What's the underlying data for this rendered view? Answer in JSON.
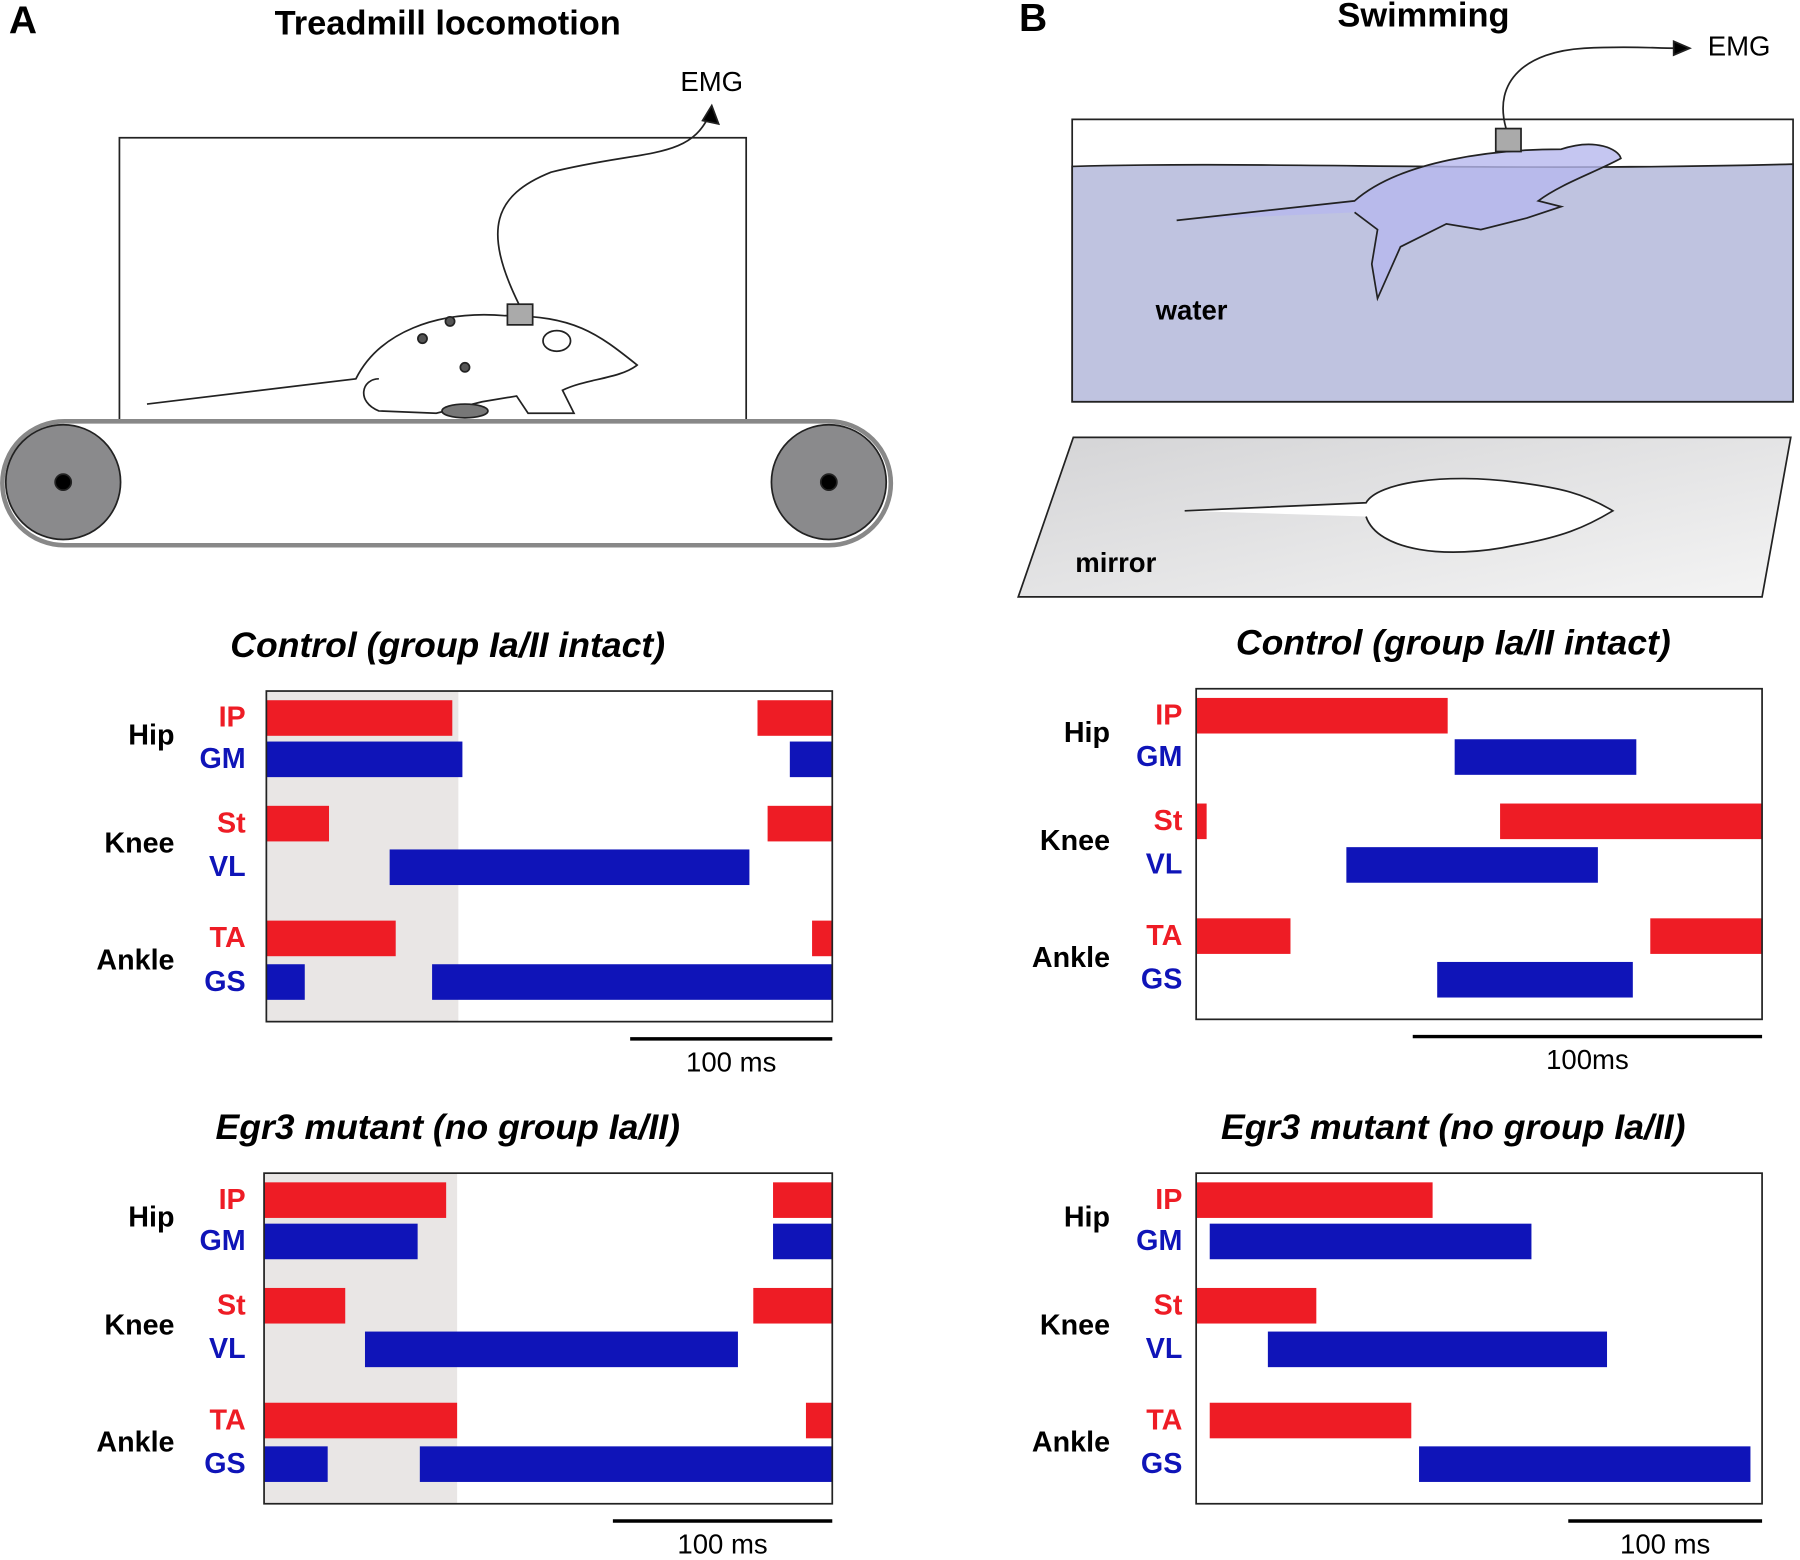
{
  "panels": {
    "A": {
      "letter": "A",
      "title": "Treadmill locomotion",
      "emg": "EMG"
    },
    "B": {
      "letter": "B",
      "title": "Swimming",
      "emg": "EMG",
      "water": "water",
      "mirror": "mirror"
    }
  },
  "chart_data": [
    {
      "type": "timeline",
      "title": "Control (group Ia/II intact)",
      "xlim": [
        0,
        280
      ],
      "joints": [
        "Hip",
        "Knee",
        "Ankle"
      ],
      "shade": [
        0,
        95
      ],
      "scale_bar": {
        "value": 100,
        "label": "100 ms"
      },
      "series": [
        {
          "name": "IP",
          "color": "#ee1c25",
          "bursts": [
            [
              0,
              92
            ],
            [
              243,
              280
            ]
          ]
        },
        {
          "name": "GM",
          "color": "#0f14b8",
          "bursts": [
            [
              0,
              97
            ],
            [
              259,
              280
            ]
          ]
        },
        {
          "name": "St",
          "color": "#ee1c25",
          "bursts": [
            [
              0,
              31
            ],
            [
              248,
              280
            ]
          ]
        },
        {
          "name": "VL",
          "color": "#0f14b8",
          "bursts": [
            [
              61,
              239
            ]
          ]
        },
        {
          "name": "TA",
          "color": "#ee1c25",
          "bursts": [
            [
              0,
              64
            ],
            [
              270,
              280
            ]
          ]
        },
        {
          "name": "GS",
          "color": "#0f14b8",
          "bursts": [
            [
              0,
              19
            ],
            [
              82,
              280
            ]
          ]
        }
      ]
    },
    {
      "type": "timeline",
      "title": "Egr3 mutant (no group Ia/II)",
      "xlim": [
        0,
        259
      ],
      "joints": [
        "Hip",
        "Knee",
        "Ankle"
      ],
      "shade": [
        0,
        88
      ],
      "scale_bar": {
        "value": 100,
        "label": "100 ms"
      },
      "series": [
        {
          "name": "IP",
          "color": "#ee1c25",
          "bursts": [
            [
              0,
              83
            ],
            [
              232,
              259
            ]
          ]
        },
        {
          "name": "GM",
          "color": "#0f14b8",
          "bursts": [
            [
              0,
              70
            ],
            [
              232,
              259
            ]
          ]
        },
        {
          "name": "St",
          "color": "#ee1c25",
          "bursts": [
            [
              0,
              37
            ],
            [
              223,
              259
            ]
          ]
        },
        {
          "name": "VL",
          "color": "#0f14b8",
          "bursts": [
            [
              46,
              216
            ]
          ]
        },
        {
          "name": "TA",
          "color": "#ee1c25",
          "bursts": [
            [
              0,
              88
            ],
            [
              247,
              259
            ]
          ]
        },
        {
          "name": "GS",
          "color": "#0f14b8",
          "bursts": [
            [
              0,
              29
            ],
            [
              71,
              259
            ]
          ]
        }
      ]
    },
    {
      "type": "timeline",
      "title": "Control (group Ia/II intact)",
      "xlim": [
        0,
        162
      ],
      "joints": [
        "Hip",
        "Knee",
        "Ankle"
      ],
      "scale_bar": {
        "value": 100,
        "label": "100ms"
      },
      "series": [
        {
          "name": "IP",
          "color": "#ee1c25",
          "bursts": [
            [
              0,
              72
            ]
          ]
        },
        {
          "name": "GM",
          "color": "#0f14b8",
          "bursts": [
            [
              74,
              126
            ]
          ]
        },
        {
          "name": "St",
          "color": "#ee1c25",
          "bursts": [
            [
              0,
              3
            ],
            [
              87,
              162
            ]
          ]
        },
        {
          "name": "VL",
          "color": "#0f14b8",
          "bursts": [
            [
              43,
              115
            ]
          ]
        },
        {
          "name": "TA",
          "color": "#ee1c25",
          "bursts": [
            [
              0,
              27
            ],
            [
              130,
              162
            ]
          ]
        },
        {
          "name": "GS",
          "color": "#0f14b8",
          "bursts": [
            [
              69,
              125
            ]
          ]
        }
      ]
    },
    {
      "type": "timeline",
      "title": "Egr3 mutant (no group Ia/II)",
      "xlim": [
        0,
        292
      ],
      "joints": [
        "Hip",
        "Knee",
        "Ankle"
      ],
      "scale_bar": {
        "value": 100,
        "label": "100 ms"
      },
      "series": [
        {
          "name": "IP",
          "color": "#ee1c25",
          "bursts": [
            [
              0,
              122
            ]
          ]
        },
        {
          "name": "GM",
          "color": "#0f14b8",
          "bursts": [
            [
              7,
              173
            ]
          ]
        },
        {
          "name": "St",
          "color": "#ee1c25",
          "bursts": [
            [
              0,
              62
            ]
          ]
        },
        {
          "name": "VL",
          "color": "#0f14b8",
          "bursts": [
            [
              37,
              212
            ]
          ]
        },
        {
          "name": "TA",
          "color": "#ee1c25",
          "bursts": [
            [
              7,
              111
            ]
          ]
        },
        {
          "name": "GS",
          "color": "#0f14b8",
          "bursts": [
            [
              115,
              286
            ]
          ]
        }
      ]
    }
  ]
}
